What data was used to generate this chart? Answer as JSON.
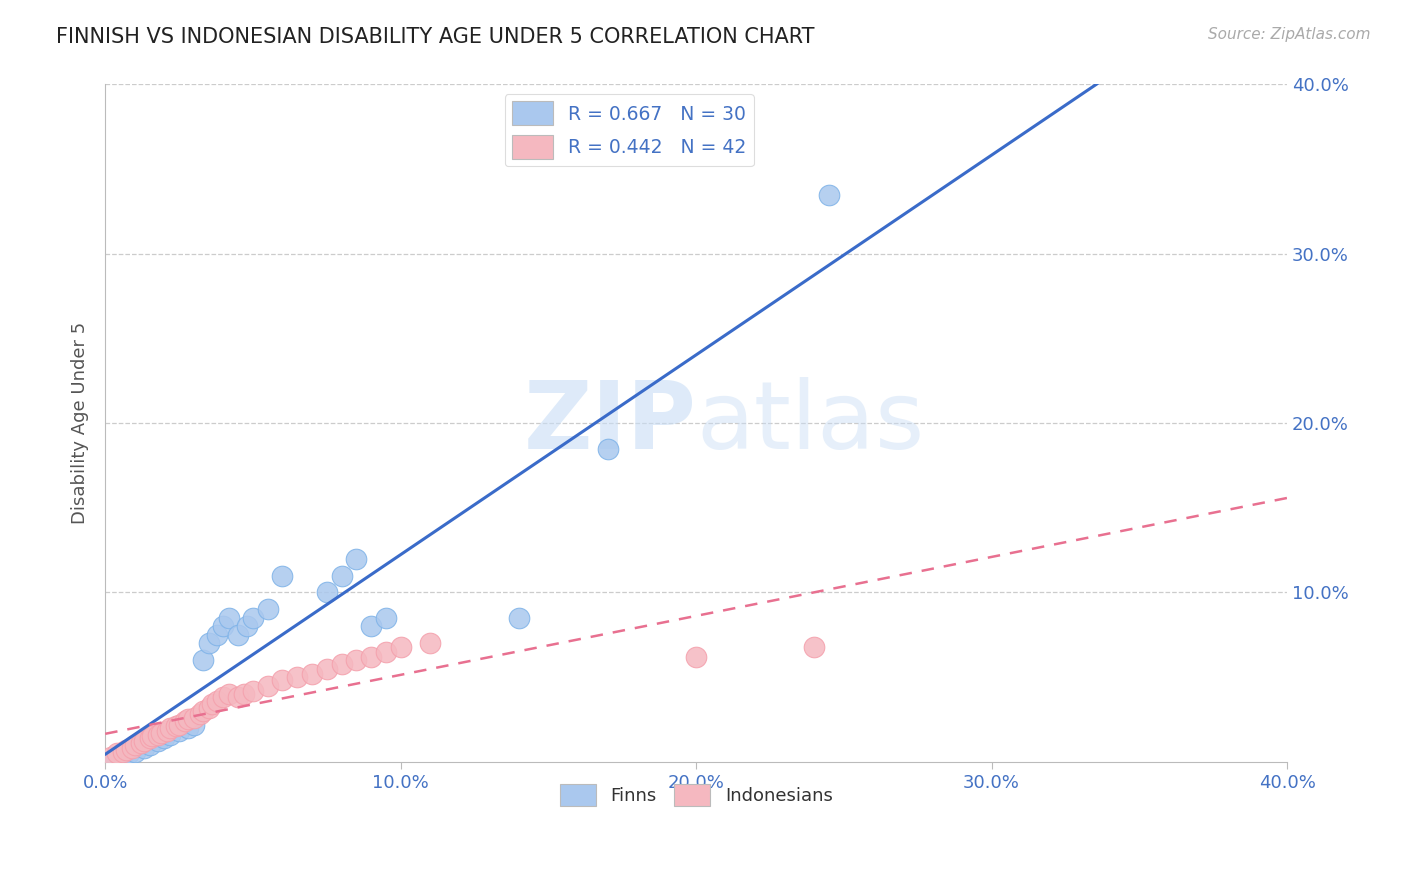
{
  "title": "FINNISH VS INDONESIAN DISABILITY AGE UNDER 5 CORRELATION CHART",
  "source": "Source: ZipAtlas.com",
  "ylabel": "Disability Age Under 5",
  "xlim": [
    0.0,
    0.4
  ],
  "ylim": [
    0.0,
    0.4
  ],
  "xtick_vals": [
    0.0,
    0.1,
    0.2,
    0.3,
    0.4
  ],
  "ytick_vals": [
    0.1,
    0.2,
    0.3,
    0.4
  ],
  "finn_color": "#aac8ee",
  "finn_edge_color": "#7fb3e8",
  "indonesian_color": "#f5b8c0",
  "indonesian_edge_color": "#f4a0ac",
  "finn_line_color": "#3a6bc9",
  "indonesian_line_color": "#e87090",
  "background_color": "#ffffff",
  "grid_color": "#cccccc",
  "watermark_zip": "ZIP",
  "watermark_atlas": "atlas",
  "tick_label_color": "#4472c4",
  "finns_x": [
    0.003,
    0.006,
    0.008,
    0.01,
    0.013,
    0.015,
    0.018,
    0.02,
    0.022,
    0.025,
    0.028,
    0.03,
    0.033,
    0.035,
    0.038,
    0.04,
    0.042,
    0.045,
    0.048,
    0.05,
    0.055,
    0.06,
    0.075,
    0.08,
    0.085,
    0.09,
    0.095,
    0.14,
    0.17,
    0.245
  ],
  "finns_y": [
    0.002,
    0.004,
    0.005,
    0.006,
    0.008,
    0.01,
    0.012,
    0.014,
    0.016,
    0.018,
    0.02,
    0.022,
    0.06,
    0.07,
    0.075,
    0.08,
    0.085,
    0.075,
    0.08,
    0.085,
    0.09,
    0.11,
    0.1,
    0.11,
    0.12,
    0.08,
    0.085,
    0.085,
    0.185,
    0.335
  ],
  "indonesians_x": [
    0.002,
    0.004,
    0.006,
    0.007,
    0.009,
    0.01,
    0.012,
    0.013,
    0.015,
    0.016,
    0.018,
    0.019,
    0.021,
    0.022,
    0.024,
    0.025,
    0.027,
    0.028,
    0.03,
    0.032,
    0.033,
    0.035,
    0.036,
    0.038,
    0.04,
    0.042,
    0.045,
    0.047,
    0.05,
    0.055,
    0.06,
    0.065,
    0.07,
    0.075,
    0.08,
    0.085,
    0.09,
    0.095,
    0.1,
    0.11,
    0.2,
    0.24
  ],
  "indonesians_y": [
    0.003,
    0.005,
    0.006,
    0.007,
    0.008,
    0.01,
    0.011,
    0.012,
    0.014,
    0.015,
    0.016,
    0.017,
    0.018,
    0.02,
    0.021,
    0.022,
    0.024,
    0.025,
    0.026,
    0.028,
    0.03,
    0.032,
    0.034,
    0.036,
    0.038,
    0.04,
    0.038,
    0.04,
    0.042,
    0.045,
    0.048,
    0.05,
    0.052,
    0.055,
    0.058,
    0.06,
    0.062,
    0.065,
    0.068,
    0.07,
    0.062,
    0.068
  ]
}
